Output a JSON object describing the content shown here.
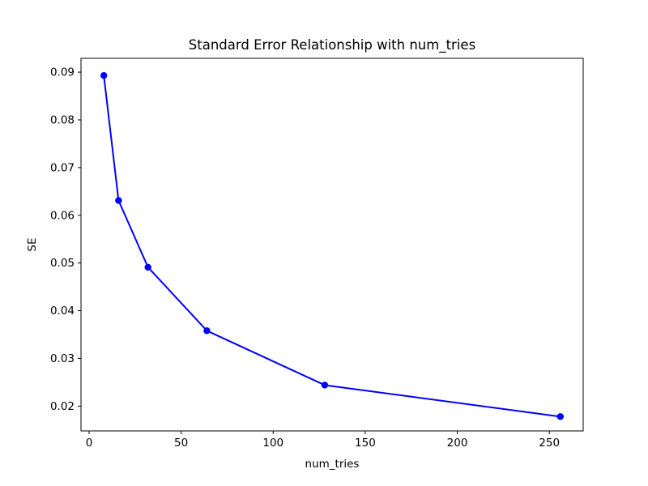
{
  "figure": {
    "background": "#ffffff"
  },
  "chart_data": {
    "type": "line",
    "title": "Standard Error Relationship with num_tries",
    "xlabel": "num_tries",
    "ylabel": "SE",
    "x": [
      8,
      16,
      32,
      64,
      128,
      256
    ],
    "y": [
      0.0893,
      0.0631,
      0.0491,
      0.0358,
      0.0244,
      0.0178
    ],
    "series": [
      {
        "name": "SE",
        "x": [
          8,
          16,
          32,
          64,
          128,
          256
        ],
        "values": [
          0.0893,
          0.0631,
          0.0491,
          0.0358,
          0.0244,
          0.0178
        ]
      }
    ],
    "line_color": "#0000ff",
    "marker": "circle",
    "marker_color": "#0000ff",
    "xlim": [
      -4.4,
      268.4
    ],
    "ylim": [
      0.0148,
      0.0929
    ],
    "x_ticks": [
      0,
      50,
      100,
      150,
      200,
      250
    ],
    "y_ticks": [
      0.02,
      0.03,
      0.04,
      0.05,
      0.06,
      0.07,
      0.08,
      0.09
    ],
    "y_tick_decimals": 2,
    "grid": false,
    "legend": null,
    "spine_color": "#000000"
  }
}
